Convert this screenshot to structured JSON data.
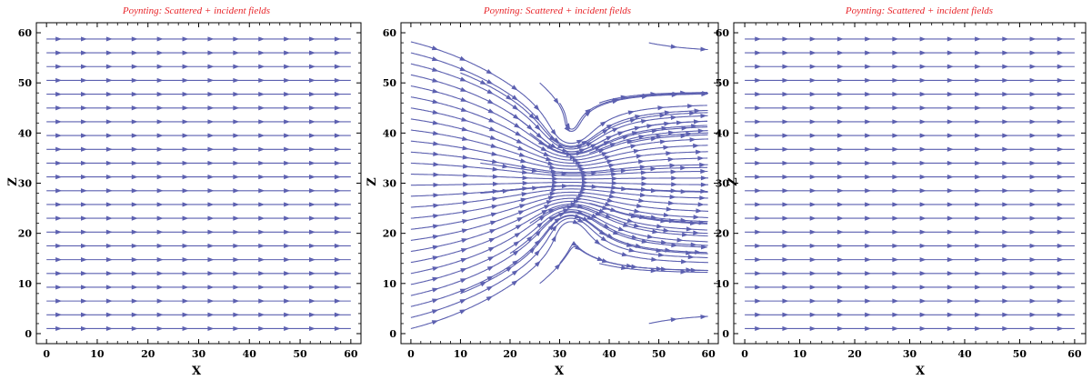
{
  "colors": {
    "title": "#e8262b",
    "stream": "#5c60b0",
    "frame": "#000000"
  },
  "chart_data": [
    {
      "type": "streamplot",
      "title": "Poynting: Scattered + incident fields",
      "xlabel": "X",
      "ylabel": "Z",
      "xlim": [
        -2,
        62
      ],
      "ylim": [
        -2,
        62
      ],
      "xticks": [
        "0",
        "10",
        "20",
        "30",
        "40",
        "50",
        "60"
      ],
      "yticks": [
        "0",
        "10",
        "20",
        "30",
        "40",
        "50",
        "60"
      ],
      "field": "uniform",
      "flow_direction": "+x",
      "grid": false
    },
    {
      "type": "streamplot",
      "title": "Poynting: Scattered + incident fields",
      "xlabel": "X",
      "ylabel": "Z",
      "xlim": [
        -2,
        62
      ],
      "ylim": [
        -2,
        62
      ],
      "xticks": [
        "0",
        "10",
        "20",
        "30",
        "40",
        "50",
        "60"
      ],
      "yticks": [
        "0",
        "10",
        "20",
        "30",
        "40",
        "50",
        "60"
      ],
      "field": "scattered_vortex_pair",
      "flow_direction": "+x",
      "vortex_centers": [
        [
          32,
          39
        ],
        [
          32,
          22
        ]
      ],
      "grid": false
    },
    {
      "type": "streamplot",
      "title": "Poynting: Scattered + incident fields",
      "xlabel": "X",
      "ylabel": "Z",
      "xlim": [
        -2,
        62
      ],
      "ylim": [
        -2,
        62
      ],
      "xticks": [
        "0",
        "10",
        "20",
        "30",
        "40",
        "50",
        "60"
      ],
      "yticks": [
        "0",
        "10",
        "20",
        "30",
        "40",
        "50",
        "60"
      ],
      "field": "uniform",
      "flow_direction": "+x",
      "grid": false
    }
  ]
}
